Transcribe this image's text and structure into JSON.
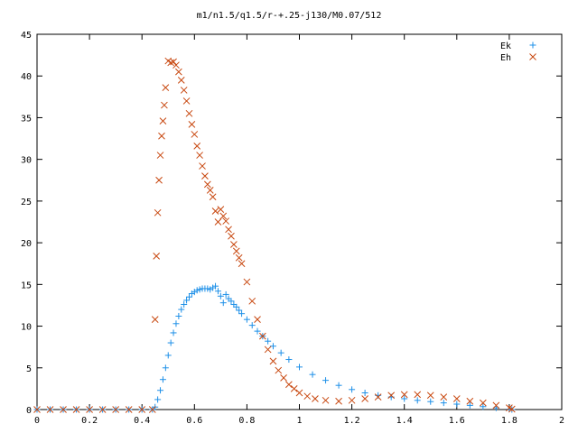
{
  "chart_data": {
    "type": "scatter",
    "title": "m1/n1.5/q1.5/r-+.25-j130/M0.07/512",
    "xlabel": "",
    "ylabel": "",
    "xlim": [
      0,
      2
    ],
    "ylim": [
      0,
      45
    ],
    "xticks": [
      {
        "value": 0,
        "label": "0"
      },
      {
        "value": 0.2,
        "label": "0.2"
      },
      {
        "value": 0.4,
        "label": "0.4"
      },
      {
        "value": 0.6,
        "label": "0.6"
      },
      {
        "value": 0.8,
        "label": "0.8"
      },
      {
        "value": 1,
        "label": "1"
      },
      {
        "value": 1.2,
        "label": "1.2"
      },
      {
        "value": 1.4,
        "label": "1.4"
      },
      {
        "value": 1.6,
        "label": "1.6"
      },
      {
        "value": 1.8,
        "label": "1.8"
      },
      {
        "value": 2,
        "label": "2"
      }
    ],
    "yticks": [
      {
        "value": 0,
        "label": "0"
      },
      {
        "value": 5,
        "label": "5"
      },
      {
        "value": 10,
        "label": "10"
      },
      {
        "value": 15,
        "label": "15"
      },
      {
        "value": 20,
        "label": "20"
      },
      {
        "value": 25,
        "label": "25"
      },
      {
        "value": 30,
        "label": "30"
      },
      {
        "value": 35,
        "label": "35"
      },
      {
        "value": 40,
        "label": "40"
      },
      {
        "value": 45,
        "label": "45"
      }
    ],
    "grid": false,
    "legend_position": "top-right",
    "series": [
      {
        "name": "Ek",
        "marker": "plus",
        "color": "#1e90e8",
        "x": [
          0.0,
          0.05,
          0.1,
          0.15,
          0.2,
          0.25,
          0.3,
          0.35,
          0.4,
          0.44,
          0.45,
          0.46,
          0.47,
          0.48,
          0.49,
          0.5,
          0.51,
          0.52,
          0.53,
          0.54,
          0.55,
          0.56,
          0.57,
          0.58,
          0.59,
          0.6,
          0.61,
          0.62,
          0.63,
          0.64,
          0.65,
          0.66,
          0.67,
          0.68,
          0.69,
          0.7,
          0.71,
          0.72,
          0.73,
          0.74,
          0.75,
          0.76,
          0.77,
          0.78,
          0.8,
          0.82,
          0.84,
          0.86,
          0.88,
          0.9,
          0.93,
          0.96,
          1.0,
          1.05,
          1.1,
          1.15,
          1.2,
          1.25,
          1.3,
          1.35,
          1.4,
          1.45,
          1.5,
          1.55,
          1.6,
          1.65,
          1.7,
          1.75,
          1.8,
          1.81
        ],
        "y": [
          0.0,
          0.0,
          0.0,
          0.0,
          0.0,
          0.0,
          0.0,
          0.0,
          0.0,
          0.0,
          0.3,
          1.2,
          2.3,
          3.6,
          5.0,
          6.5,
          8.0,
          9.2,
          10.3,
          11.2,
          12.0,
          12.6,
          13.1,
          13.5,
          13.9,
          14.1,
          14.3,
          14.4,
          14.5,
          14.5,
          14.5,
          14.4,
          14.6,
          14.8,
          14.2,
          13.6,
          12.8,
          13.8,
          13.3,
          13.0,
          12.6,
          12.3,
          11.9,
          11.5,
          10.8,
          10.1,
          9.4,
          8.8,
          8.2,
          7.6,
          6.8,
          6.0,
          5.1,
          4.2,
          3.5,
          2.9,
          2.4,
          2.0,
          1.7,
          1.5,
          1.3,
          1.1,
          0.95,
          0.8,
          0.65,
          0.5,
          0.35,
          0.2,
          0.05,
          0.0
        ]
      },
      {
        "name": "Eh",
        "marker": "cross",
        "color": "#c84810",
        "x": [
          0.0,
          0.05,
          0.1,
          0.15,
          0.2,
          0.25,
          0.3,
          0.35,
          0.4,
          0.44,
          0.45,
          0.455,
          0.46,
          0.465,
          0.47,
          0.475,
          0.48,
          0.485,
          0.49,
          0.5,
          0.51,
          0.52,
          0.53,
          0.54,
          0.55,
          0.56,
          0.57,
          0.58,
          0.59,
          0.6,
          0.61,
          0.62,
          0.63,
          0.64,
          0.65,
          0.66,
          0.67,
          0.68,
          0.69,
          0.7,
          0.71,
          0.72,
          0.73,
          0.74,
          0.75,
          0.76,
          0.77,
          0.78,
          0.8,
          0.82,
          0.84,
          0.86,
          0.88,
          0.9,
          0.92,
          0.94,
          0.96,
          0.98,
          1.0,
          1.03,
          1.06,
          1.1,
          1.15,
          1.2,
          1.25,
          1.3,
          1.35,
          1.4,
          1.45,
          1.5,
          1.55,
          1.6,
          1.65,
          1.7,
          1.75,
          1.8,
          1.81
        ],
        "y": [
          0.0,
          0.0,
          0.0,
          0.0,
          0.0,
          0.0,
          0.0,
          0.0,
          0.0,
          0.0,
          10.8,
          18.4,
          23.6,
          27.5,
          30.5,
          32.8,
          34.6,
          36.5,
          38.6,
          41.8,
          41.6,
          41.7,
          41.3,
          40.5,
          39.5,
          38.3,
          37.0,
          35.5,
          34.2,
          33.0,
          31.6,
          30.5,
          29.2,
          28.0,
          27.0,
          26.3,
          25.5,
          23.8,
          22.5,
          24.0,
          23.2,
          22.6,
          21.6,
          20.8,
          19.8,
          19.0,
          18.2,
          17.5,
          15.3,
          13.0,
          10.8,
          8.8,
          7.2,
          5.8,
          4.7,
          3.8,
          3.0,
          2.5,
          2.0,
          1.6,
          1.3,
          1.1,
          1.0,
          1.1,
          1.3,
          1.5,
          1.7,
          1.8,
          1.8,
          1.7,
          1.5,
          1.3,
          1.0,
          0.8,
          0.5,
          0.2,
          0.05
        ]
      }
    ]
  }
}
